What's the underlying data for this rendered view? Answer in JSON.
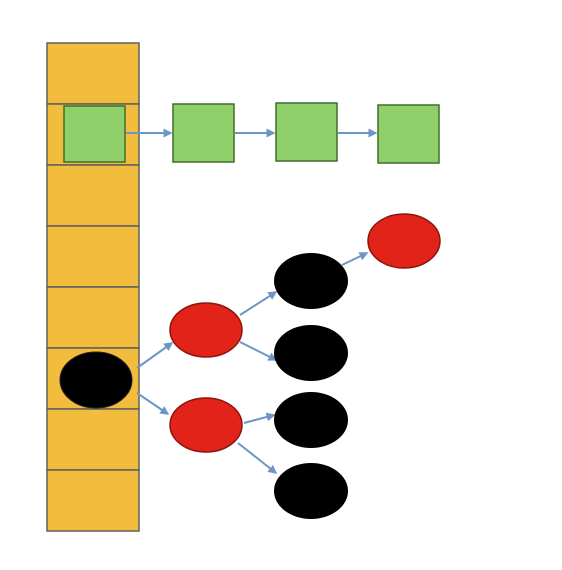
{
  "diagram": {
    "bucket_array": {
      "slot_count": 8,
      "fill_color": "#f2bc3c",
      "border_color": "#5f5f5f",
      "chained_list_slot_index": 1,
      "tree_slot_index": 5
    },
    "linked_list": {
      "node_count": 4,
      "node_fill_color": "#8fd06a",
      "node_border_color": "#3f6f2a",
      "arrow_color": "#6d95c6"
    },
    "tree": {
      "levels": 4,
      "root_node_color": "#000000",
      "red_node_color": "#e2231a",
      "black_node_color": "#000000",
      "arrow_color": "#6d95c6"
    },
    "background_color": "#ffffff"
  }
}
